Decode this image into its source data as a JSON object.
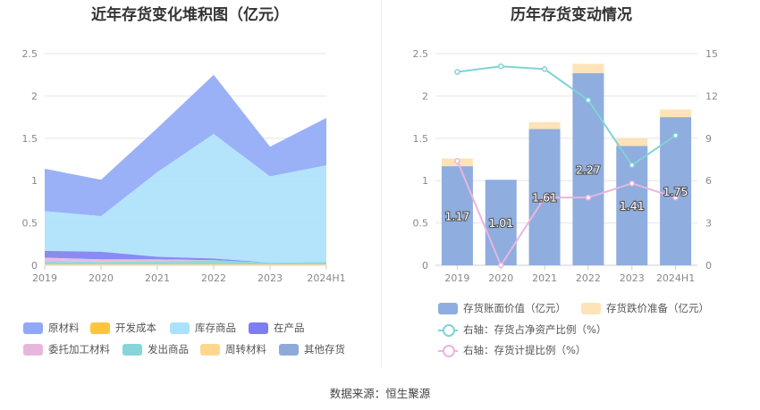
{
  "source": "数据来源：恒生聚源",
  "chart_data": [
    {
      "type": "area",
      "title": "近年存货变化堆积图（亿元）",
      "categories": [
        "2019",
        "2020",
        "2021",
        "2022",
        "2023",
        "2024H1"
      ],
      "ylim": [
        0,
        2.5
      ],
      "yticks": [
        "0",
        "0.5",
        "1",
        "1.5",
        "2",
        "2.5"
      ],
      "stacked": true,
      "series": [
        {
          "name": "原材料",
          "color": "#8fa9f7",
          "values": [
            0.5,
            0.43,
            0.52,
            0.7,
            0.35,
            0.56
          ]
        },
        {
          "name": "开发成本",
          "color": "#ffc53d",
          "values": [
            0,
            0,
            0,
            0,
            0,
            0
          ]
        },
        {
          "name": "库存商品",
          "color": "#abe1fb",
          "values": [
            0.47,
            0.42,
            1.0,
            1.47,
            1.02,
            1.14
          ]
        },
        {
          "name": "在产品",
          "color": "#7d7df4",
          "values": [
            0.08,
            0.09,
            0.03,
            0.02,
            0.0,
            0.0
          ]
        },
        {
          "name": "委托加工材料",
          "color": "#e8b6dd",
          "values": [
            0.04,
            0.03,
            0.02,
            0.0,
            0.0,
            0.0
          ]
        },
        {
          "name": "发出商品",
          "color": "#86d5d8",
          "values": [
            0.04,
            0.03,
            0.04,
            0.05,
            0.02,
            0.03
          ]
        },
        {
          "name": "周转材料",
          "color": "#ffd88e",
          "values": [
            0.01,
            0.01,
            0.01,
            0.01,
            0.01,
            0.01
          ]
        },
        {
          "name": "其他存货",
          "color": "#8eaadb",
          "values": [
            0,
            0,
            0,
            0,
            0,
            0
          ]
        }
      ],
      "legend_position": "bottom"
    },
    {
      "type": "bar",
      "title": "历年存货变动情况",
      "categories": [
        "2019",
        "2020",
        "2021",
        "2022",
        "2023",
        "2024H1"
      ],
      "ylim": [
        0,
        2.5
      ],
      "yticks": [
        "0",
        "0.5",
        "1",
        "1.5",
        "2",
        "2.5"
      ],
      "y2lim": [
        0,
        15
      ],
      "y2ticks": [
        "0",
        "3",
        "6",
        "9",
        "12",
        "15"
      ],
      "stacked": true,
      "series": [
        {
          "name": "存货账面价值（亿元）",
          "color": "#8fadde",
          "values": [
            1.17,
            1.01,
            1.61,
            2.27,
            1.41,
            1.75
          ],
          "labels": [
            "1.17",
            "1.01",
            "1.61",
            "2.27",
            "1.41",
            "1.75"
          ]
        },
        {
          "name": "存货跌价准备（亿元）",
          "color": "#fde3b8",
          "values": [
            0.09,
            0.0,
            0.08,
            0.11,
            0.09,
            0.09
          ]
        },
        {
          "name": "右轴：存货占净资产比例（%）",
          "type": "line",
          "axis": "right",
          "color": "#7fd3d8",
          "values": [
            13.7,
            14.1,
            13.9,
            11.7,
            7.1,
            9.2
          ]
        },
        {
          "name": "右轴：存货计提比例（%）",
          "type": "line",
          "axis": "right",
          "color": "#eab5de",
          "values": [
            7.4,
            0.0,
            4.8,
            4.8,
            5.8,
            4.8
          ]
        }
      ],
      "legend_position": "bottom"
    }
  ]
}
